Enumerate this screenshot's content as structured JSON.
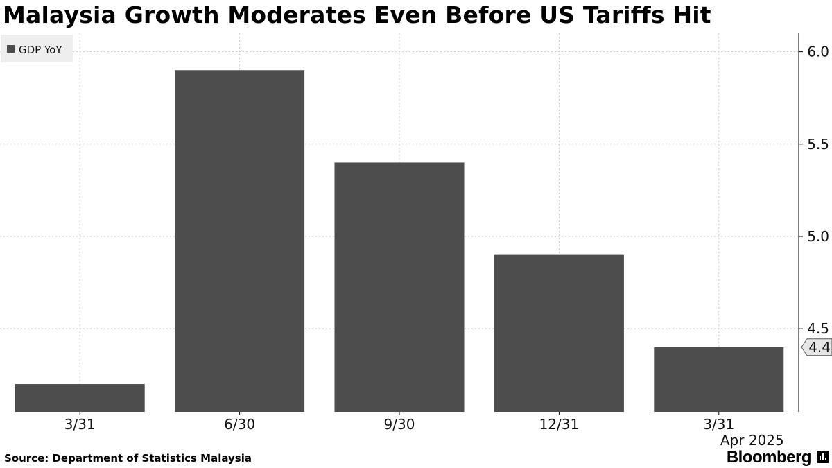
{
  "title": "Malaysia Growth Moderates Even Before US Tariffs Hit",
  "source": "Source: Department of Statistics Malaysia",
  "brand": "Bloomberg",
  "brand_icon": "bar-chart-icon",
  "colors": {
    "bar": "#4d4d4d",
    "grid": "#c8c8c8",
    "axis": "#000000",
    "legend_bg": "#eeeeee"
  },
  "chart_data": {
    "type": "bar",
    "categories": [
      "3/31",
      "6/30",
      "9/30",
      "12/31",
      "3/31"
    ],
    "x_sublabel": "Apr 2025",
    "series": [
      {
        "name": "GDP YoY",
        "values": [
          4.2,
          5.9,
          5.4,
          4.9,
          4.4
        ]
      }
    ],
    "ylim": [
      4.05,
      6.1
    ],
    "yticks": [
      4.5,
      5.0,
      5.5,
      6.0
    ],
    "ytick_labels": [
      "4.5",
      "5.0",
      "5.5",
      "6.0"
    ],
    "y_axis_side": "right",
    "last_value_label": "4.4",
    "legend_position": "top-left",
    "grid": true
  }
}
